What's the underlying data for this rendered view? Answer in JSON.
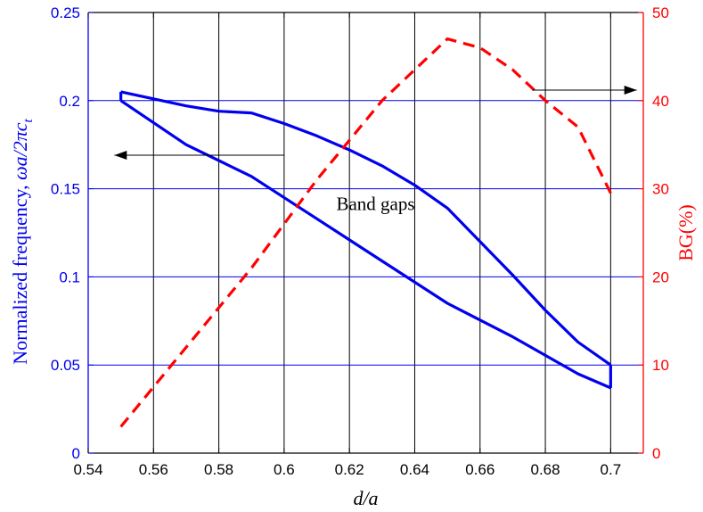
{
  "chart_data": {
    "type": "line",
    "xlabel": "d/a",
    "ylabel_left_parts": [
      "Normalized  frequency, ",
      "ωa/2πc",
      "t"
    ],
    "ylabel_right": "BG(%)",
    "xlim": [
      0.54,
      0.71
    ],
    "ylim_left": [
      0,
      0.25
    ],
    "ylim_right": [
      0,
      50
    ],
    "x_ticks": [
      0.54,
      0.56,
      0.58,
      0.6,
      0.62,
      0.64,
      0.66,
      0.68,
      0.7
    ],
    "x_tick_labels": [
      "0.54",
      "0.56",
      "0.58",
      "0.6",
      "0.62",
      "0.64",
      "0.66",
      "0.68",
      "0.7"
    ],
    "y_left_ticks": [
      0,
      0.05,
      0.1,
      0.15,
      0.2,
      0.25
    ],
    "y_left_tick_labels": [
      "0",
      "0.05",
      "0.1",
      "0.15",
      "0.2",
      "0.25"
    ],
    "y_right_ticks": [
      0,
      10,
      20,
      30,
      40,
      50
    ],
    "y_right_tick_labels": [
      "0",
      "10",
      "20",
      "30",
      "40",
      "50"
    ],
    "grid": true,
    "series": [
      {
        "axis": "left",
        "style": "solid",
        "color": "#0000ee",
        "x": [
          0.55,
          0.57,
          0.59,
          0.61,
          0.63,
          0.65,
          0.67,
          0.69,
          0.7
        ],
        "y": [
          0.2,
          0.175,
          0.157,
          0.133,
          0.109,
          0.085,
          0.066,
          0.045,
          0.037
        ]
      },
      {
        "axis": "left",
        "style": "solid",
        "color": "#0000ee",
        "x": [
          0.55,
          0.57,
          0.58,
          0.59,
          0.6,
          0.61,
          0.62,
          0.63,
          0.64,
          0.65,
          0.66,
          0.67,
          0.68,
          0.69,
          0.7
        ],
        "y": [
          0.205,
          0.197,
          0.194,
          0.193,
          0.187,
          0.18,
          0.172,
          0.163,
          0.152,
          0.139,
          0.12,
          0.101,
          0.081,
          0.063,
          0.05
        ]
      },
      {
        "axis": "right",
        "style": "dashed",
        "color": "#ff0000",
        "x": [
          0.55,
          0.57,
          0.59,
          0.61,
          0.63,
          0.65,
          0.66,
          0.67,
          0.68,
          0.69,
          0.7
        ],
        "y": [
          3,
          12,
          21,
          31,
          40,
          47,
          46,
          43.5,
          40,
          37,
          29.5
        ]
      }
    ],
    "annotations": [
      {
        "text": "Band gaps",
        "x": 0.628,
        "y": 0.138
      }
    ],
    "arrows": [
      {
        "axis": "left",
        "x_from": 0.6,
        "x_to": 0.548,
        "y": 0.169,
        "meaning": "left-axis"
      },
      {
        "axis": "left",
        "x_from": 0.676,
        "x_to": 0.708,
        "y": 0.206,
        "meaning": "right-axis"
      }
    ],
    "colors": {
      "left_axis": "#0000ee",
      "right_axis": "#ff0000",
      "grid_horizontal": "#0000ee",
      "grid_vertical": "#000000",
      "x_axis": "#000000"
    }
  }
}
